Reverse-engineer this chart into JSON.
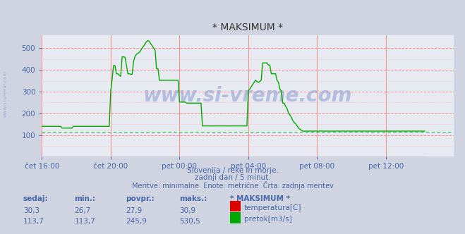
{
  "title": "* MAKSIMUM *",
  "background_color": "#d0d4e0",
  "plot_bg_color": "#e8eaf2",
  "grid_color_major": "#ff8888",
  "grid_color_minor": "#ffbbbb",
  "ylabel_color": "#4466aa",
  "xlabel_color": "#4466aa",
  "title_color": "#333333",
  "watermark": "www.si-vreme.com",
  "watermark_color": "#8899cc",
  "subtitle1": "Slovenija / reke in morje.",
  "subtitle2": "zadnji dan / 5 minut.",
  "subtitle3": "Meritve: minimalne  Enote: metrične  Črta: zadnja meritev",
  "subtitle_color": "#4466aa",
  "xticklabels": [
    "čet 16:00",
    "čet 20:00",
    "pet 00:00",
    "pet 04:00",
    "pet 08:00",
    "pet 12:00"
  ],
  "xtick_positions": [
    0,
    48,
    96,
    144,
    192,
    240
  ],
  "ylim": [
    0,
    560
  ],
  "yticks": [
    100,
    200,
    300,
    400,
    500
  ],
  "xlim": [
    0,
    287
  ],
  "legend_labels": [
    "temperatura[C]",
    "pretok[m3/s]"
  ],
  "table_headers": [
    "sedaj:",
    "min.:",
    "povpr.:",
    "maks.:",
    "* MAKSIMUM *"
  ],
  "table_row1": [
    "30,3",
    "26,7",
    "27,9",
    "30,9"
  ],
  "table_row2": [
    "113,7",
    "113,7",
    "245,9",
    "530,5"
  ],
  "temp_color": "#dd0000",
  "flow_color": "#00aa00",
  "axis_color": "#cc0000",
  "minflow_line": 113.7,
  "flow_data": [
    140,
    140,
    140,
    140,
    140,
    140,
    140,
    140,
    140,
    140,
    140,
    140,
    140,
    140,
    132,
    132,
    132,
    132,
    132,
    132,
    132,
    132,
    140,
    140,
    140,
    140,
    140,
    140,
    140,
    140,
    140,
    140,
    140,
    140,
    140,
    140,
    140,
    140,
    140,
    140,
    140,
    140,
    140,
    140,
    140,
    140,
    140,
    140,
    300,
    355,
    420,
    420,
    382,
    382,
    375,
    370,
    460,
    460,
    458,
    420,
    382,
    382,
    380,
    380,
    440,
    462,
    472,
    476,
    480,
    490,
    500,
    510,
    520,
    530,
    535,
    530,
    520,
    510,
    500,
    490,
    405,
    405,
    352,
    352,
    352,
    352,
    352,
    352,
    352,
    352,
    352,
    352,
    352,
    352,
    352,
    352,
    252,
    252,
    252,
    252,
    252,
    247,
    247,
    247,
    247,
    247,
    247,
    247,
    247,
    247,
    247,
    247,
    142,
    142,
    142,
    142,
    142,
    142,
    142,
    142,
    142,
    142,
    142,
    142,
    142,
    142,
    142,
    142,
    142,
    142,
    142,
    142,
    142,
    142,
    142,
    142,
    142,
    142,
    142,
    142,
    142,
    142,
    142,
    142,
    305,
    312,
    322,
    332,
    342,
    352,
    347,
    342,
    347,
    352,
    432,
    432,
    432,
    432,
    422,
    422,
    382,
    382,
    382,
    382,
    352,
    342,
    312,
    302,
    247,
    247,
    232,
    222,
    202,
    192,
    182,
    167,
    157,
    152,
    142,
    132,
    127,
    122,
    118,
    118,
    118,
    118,
    118,
    118,
    118,
    118,
    118,
    118,
    118,
    118,
    118,
    118,
    118,
    118,
    118,
    118,
    118,
    118,
    118,
    118,
    118,
    118,
    118,
    118,
    118,
    118,
    118,
    118,
    118,
    118,
    118,
    118,
    118,
    118,
    118,
    118,
    118,
    118,
    118,
    118,
    118,
    118,
    118,
    118,
    118,
    118,
    118,
    118,
    118,
    118,
    118,
    118,
    118,
    118,
    118,
    118,
    118,
    118,
    118,
    118,
    118,
    118,
    118,
    118,
    118,
    118,
    118,
    118,
    118,
    118,
    118,
    118,
    118,
    118,
    118,
    118,
    118,
    118,
    118,
    118,
    118,
    118,
    118,
    118
  ],
  "dpi": 100,
  "figsize": [
    6.59,
    3.32
  ]
}
